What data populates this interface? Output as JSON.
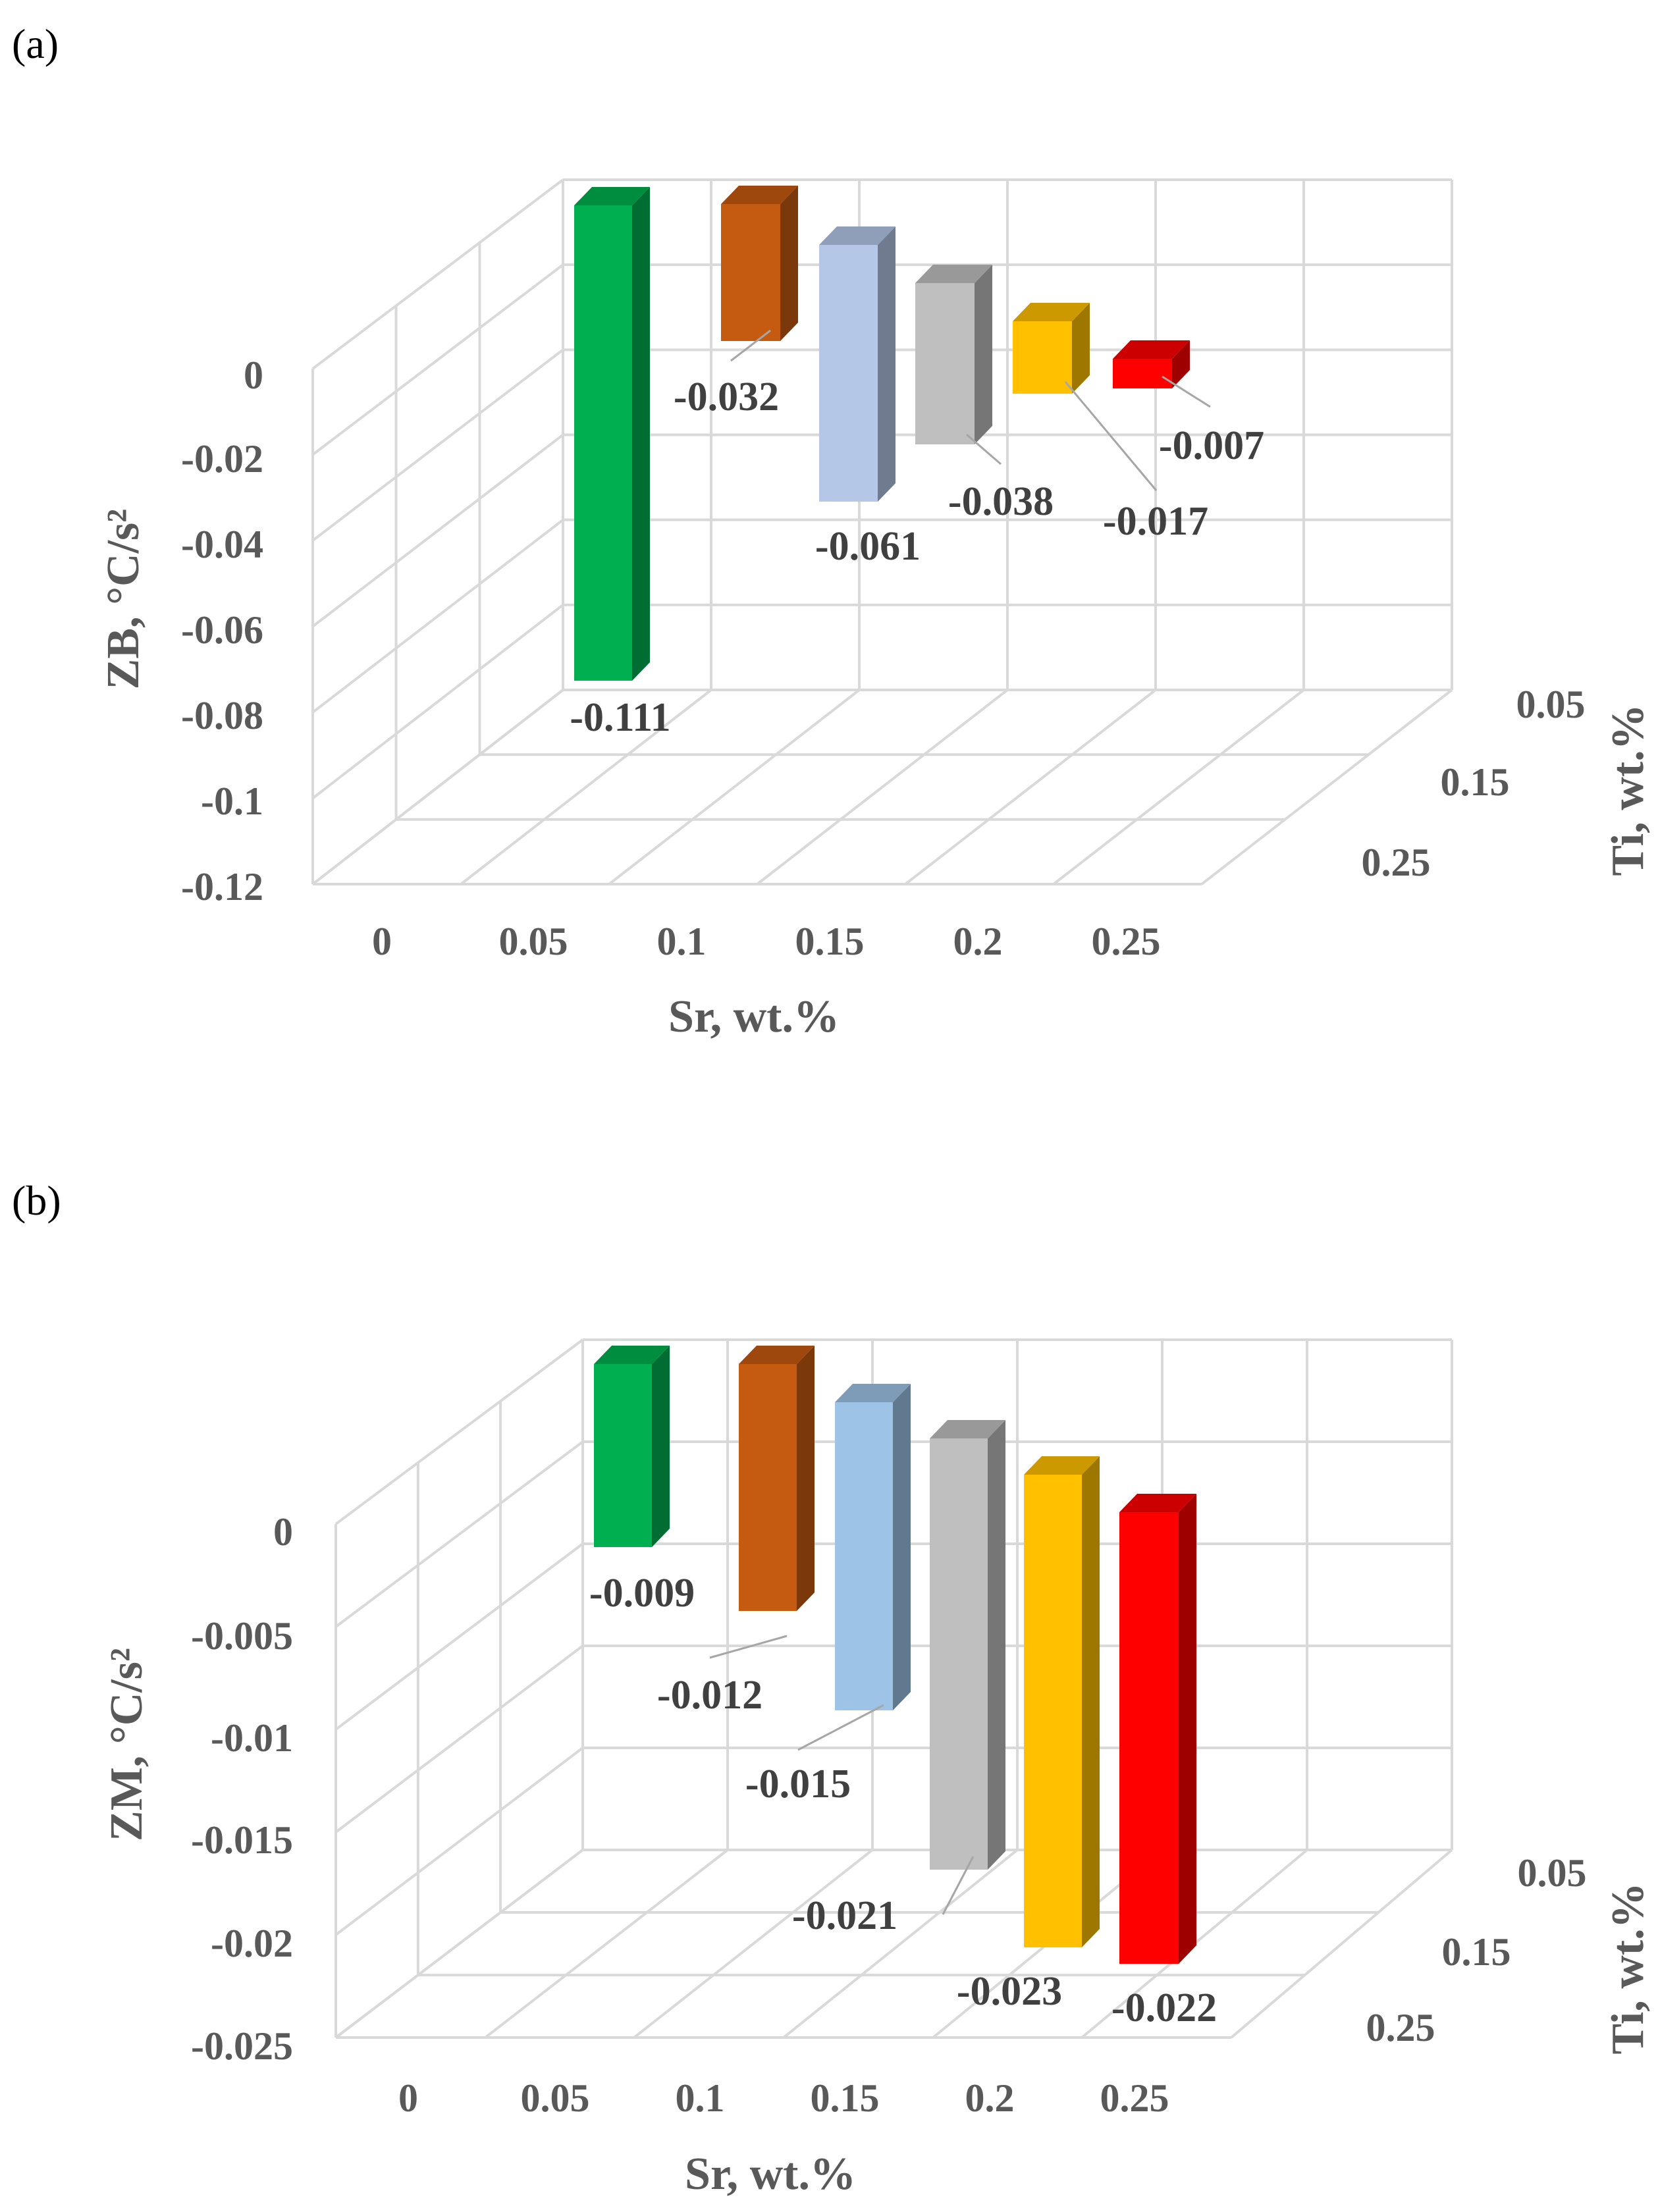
{
  "chart_data": [
    {
      "panel_label": "(a)",
      "type": "bar3d",
      "ylabel": "ZB, °C/s²",
      "xlabel": "Sr, wt.%",
      "zlabel": "Ti, wt.%",
      "yticks": [
        "0",
        "-0.02",
        "-0.04",
        "-0.06",
        "-0.08",
        "-0.1",
        "-0.12"
      ],
      "xticks": [
        "0",
        "0.05",
        "0.1",
        "0.15",
        "0.2",
        "0.25"
      ],
      "zticks": [
        "0.05",
        "0.15",
        "0.25"
      ],
      "ylim": [
        -0.12,
        0
      ],
      "bars": [
        {
          "label": "-0.111",
          "value": -0.111,
          "color": "#00b050"
        },
        {
          "label": "-0.032",
          "value": -0.032,
          "color": "#c55a11"
        },
        {
          "label": "-0.061",
          "value": -0.061,
          "color": "#b4c7e7"
        },
        {
          "label": "-0.038",
          "value": -0.038,
          "color": "#bfbfbf"
        },
        {
          "label": "-0.017",
          "value": -0.017,
          "color": "#ffc000"
        },
        {
          "label": "-0.007",
          "value": -0.007,
          "color": "#ff0000"
        }
      ]
    },
    {
      "panel_label": "(b)",
      "type": "bar3d",
      "ylabel": "ZM, °C/s²",
      "xlabel": "Sr, wt.%",
      "zlabel": "Ti, wt.%",
      "yticks": [
        "0",
        "-0.005",
        "-0.01",
        "-0.015",
        "-0.02",
        "-0.025"
      ],
      "xticks": [
        "0",
        "0.05",
        "0.1",
        "0.15",
        "0.2",
        "0.25"
      ],
      "zticks": [
        "0.05",
        "0.15",
        "0.25"
      ],
      "ylim": [
        -0.025,
        0
      ],
      "bars": [
        {
          "label": "-0.009",
          "value": -0.009,
          "color": "#00b050"
        },
        {
          "label": "-0.012",
          "value": -0.012,
          "color": "#c55a11"
        },
        {
          "label": "-0.015",
          "value": -0.015,
          "color": "#9dc3e6"
        },
        {
          "label": "-0.021",
          "value": -0.021,
          "color": "#bfbfbf"
        },
        {
          "label": "-0.023",
          "value": -0.023,
          "color": "#ffc000"
        },
        {
          "label": "-0.022",
          "value": -0.022,
          "color": "#ff0000"
        }
      ]
    }
  ]
}
